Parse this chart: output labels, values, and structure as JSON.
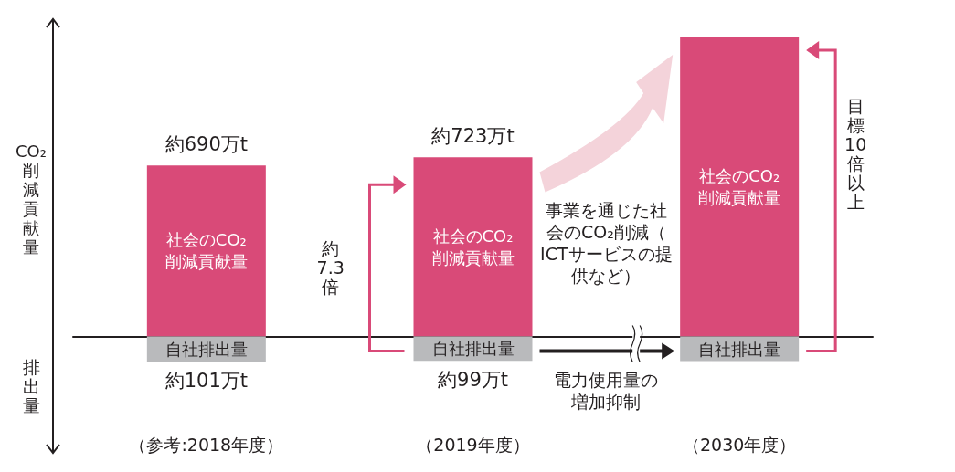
{
  "chart_data": {
    "type": "bar",
    "stacked": true,
    "ylabel": "CO₂削減貢献量",
    "categories": [
      "（参考:2018年度）",
      "（2019年度）",
      "（2030年度）"
    ],
    "series": [
      {
        "name": "社会のCO₂削減貢献量",
        "color": "#d94a78",
        "values": [
          690,
          723,
          1210
        ],
        "value_labels": [
          "約690万t",
          "約723万t",
          null
        ]
      },
      {
        "name": "自社排出量",
        "color": "#b9babc",
        "values": [
          -101,
          -99,
          -100
        ],
        "value_labels": [
          "約101万t",
          "約99万t",
          null
        ]
      }
    ],
    "annotations": [
      "排出量",
      "約7.3倍",
      "事業を通じた社会のCO₂削減（ICTサービスの提供など）",
      "電力使用量の増加抑制",
      "目標10倍以上"
    ]
  }
}
